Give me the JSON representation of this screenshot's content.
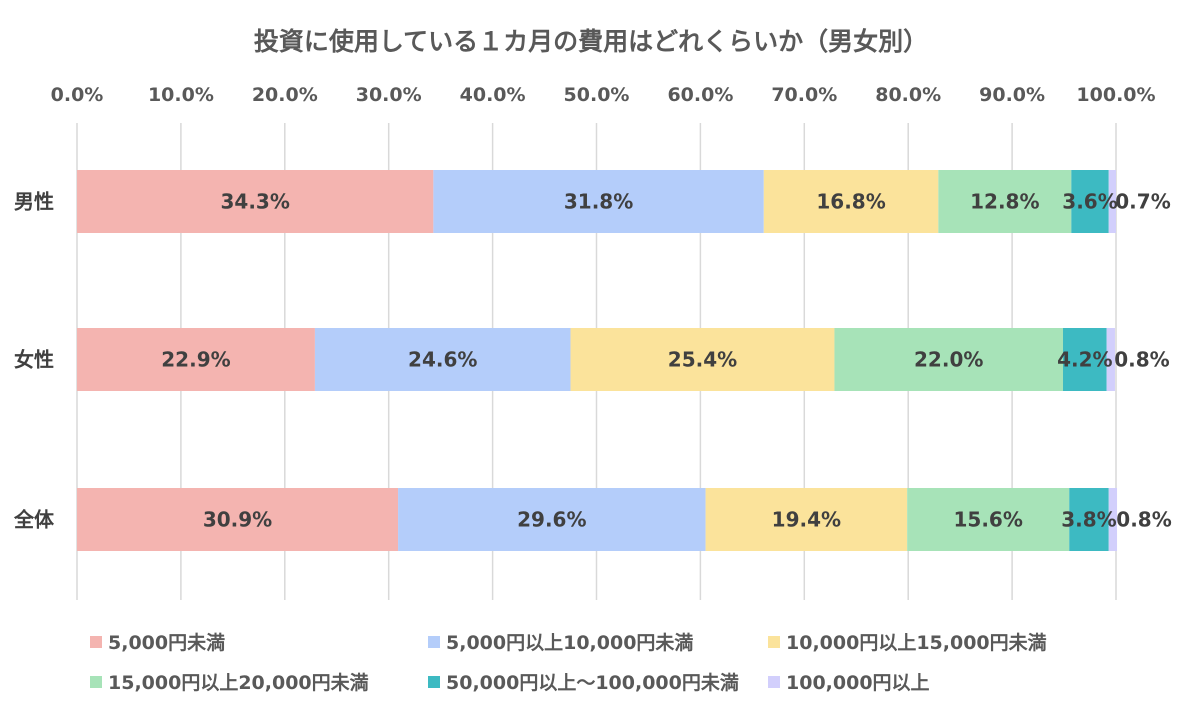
{
  "chart_data": {
    "type": "bar",
    "orientation": "horizontal",
    "stacked": true,
    "title": "投資に使用している１カ月の費用はどれくらいか（男女別）",
    "categories": [
      "男性",
      "女性",
      "全体"
    ],
    "xlim": [
      0,
      100
    ],
    "x_ticks": [
      "0.0%",
      "10.0%",
      "20.0%",
      "30.0%",
      "40.0%",
      "50.0%",
      "60.0%",
      "70.0%",
      "80.0%",
      "90.0%",
      "100.0%"
    ],
    "axis_position": "top",
    "grid": true,
    "legend_position": "bottom",
    "series": [
      {
        "name": "5,000円未満",
        "color": "#f4b4b0",
        "values": [
          34.3,
          22.9,
          30.9
        ],
        "labels": [
          "34.3%",
          "22.9%",
          "30.9%"
        ]
      },
      {
        "name": "5,000円以上10,000円未満",
        "color": "#b4cdfa",
        "values": [
          31.8,
          24.6,
          29.6
        ],
        "labels": [
          "31.8%",
          "24.6%",
          "29.6%"
        ]
      },
      {
        "name": "10,000円以上15,000円未満",
        "color": "#fbe39b",
        "values": [
          16.8,
          25.4,
          19.4
        ],
        "labels": [
          "16.8%",
          "25.4%",
          "19.4%"
        ]
      },
      {
        "name": "15,000円以上20,000円未満",
        "color": "#a7e3b8",
        "values": [
          12.8,
          22.0,
          15.6
        ],
        "labels": [
          "12.8%",
          "22.0%",
          "15.6%"
        ]
      },
      {
        "name": "50,000円以上～100,000円未満",
        "color": "#3dbac2",
        "values": [
          3.6,
          4.2,
          3.8
        ],
        "labels": [
          "3.6%",
          "4.2%",
          "3.8%"
        ]
      },
      {
        "name": "100,000円以上",
        "color": "#d2cffc",
        "values": [
          0.7,
          0.8,
          0.8
        ],
        "labels": [
          "0.7%",
          "0.8%",
          "0.8%"
        ]
      }
    ]
  }
}
